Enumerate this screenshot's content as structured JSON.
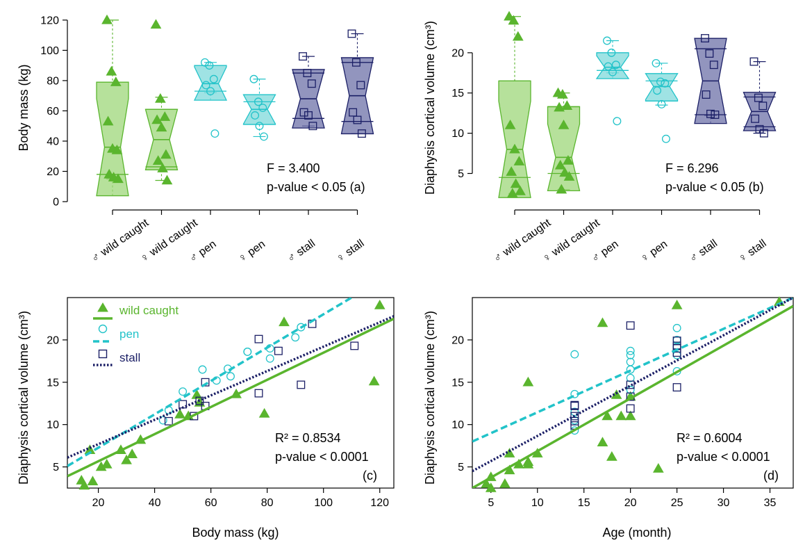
{
  "colors": {
    "wild": "#5ab52e",
    "wild_fill": "#9ed77a",
    "pen": "#22c3c9",
    "pen_fill": "#7fdadb",
    "stall": "#1b1f66",
    "stall_fill": "#6e72a8"
  },
  "panels": {
    "a": {
      "ylabel": "Body mass (kg)",
      "yticks": [
        "0",
        "20",
        "40",
        "60",
        "80",
        "100",
        "120"
      ],
      "categories": [
        "♂ wild caught",
        "♀ wild caught",
        "♂ pen",
        "♀ pen",
        "♂ stall",
        "♀ stall"
      ],
      "stat1": "F = 3.400",
      "stat2": "p-value < 0.05 (a)"
    },
    "b": {
      "ylabel": "Diaphysis cortical volume (cm³)",
      "yticks": [
        "5",
        "10",
        "15",
        "20"
      ],
      "categories": [
        "♂ wild caught",
        "♀ wild caught",
        "♂ pen",
        "♀ pen",
        "♂ stall",
        "♀ stall"
      ],
      "stat1": "F = 6.296",
      "stat2": "p-value < 0.05 (b)"
    },
    "c": {
      "xlabel": "Body mass (kg)",
      "ylabel": "Diaphysis cortical volume (cm³)",
      "xticks": [
        "20",
        "40",
        "60",
        "80",
        "100",
        "120"
      ],
      "yticks": [
        "5",
        "10",
        "15",
        "20"
      ],
      "stat1": "R² = 0.8534",
      "stat2": "p-value < 0.0001",
      "tag": "(c)",
      "legend": [
        "wild caught",
        "pen",
        "stall"
      ]
    },
    "d": {
      "xlabel": "Age (month)",
      "ylabel": "Diaphysis cortical volume (cm³)",
      "xticks": [
        "5",
        "10",
        "15",
        "20",
        "25",
        "30",
        "35"
      ],
      "yticks": [
        "5",
        "10",
        "15",
        "20"
      ],
      "stat1": "R² = 0.6004",
      "stat2": "p-value < 0.0001",
      "tag": "(d)"
    }
  },
  "chart_data": [
    {
      "type": "box",
      "panel": "a",
      "ylabel": "Body mass (kg)",
      "ylim": [
        0,
        125
      ],
      "categories": [
        "♂ wild caught",
        "♀ wild caught",
        "♂ pen",
        "♀ pen",
        "♂ stall",
        "♀ stall"
      ],
      "groups": [
        {
          "name": "♂ wild caught",
          "color": "wild",
          "min": 15,
          "q1": 18,
          "median": 36,
          "q3": 79,
          "max": 120,
          "points": [
            120,
            86,
            79,
            53,
            35,
            34,
            18,
            16,
            15
          ]
        },
        {
          "name": "♀ wild caught",
          "color": "wild",
          "min": 14,
          "q1": 23,
          "median": 41,
          "q3": 61,
          "max": 69,
          "points": [
            117,
            68,
            56,
            54,
            49,
            31,
            27,
            22,
            14
          ]
        },
        {
          "name": "♂ pen",
          "color": "pen",
          "min": 72,
          "q1": 73,
          "median": 78,
          "q3": 90,
          "max": 92,
          "points": [
            92,
            90,
            81,
            77,
            73,
            45
          ]
        },
        {
          "name": "♀ pen",
          "color": "pen",
          "min": 43,
          "q1": 51,
          "median": 61,
          "q3": 66,
          "max": 81,
          "points": [
            81,
            66,
            62,
            57,
            50,
            43
          ]
        },
        {
          "name": "♂ stall",
          "color": "stall",
          "min": 50,
          "q1": 55,
          "median": 68,
          "q3": 85,
          "max": 96,
          "points": [
            96,
            85,
            78,
            59,
            57,
            50
          ]
        },
        {
          "name": "♀ stall",
          "color": "stall",
          "min": 45,
          "q1": 53,
          "median": 70,
          "q3": 92,
          "max": 111,
          "points": [
            111,
            92,
            77,
            59,
            54,
            45
          ]
        }
      ]
    },
    {
      "type": "box",
      "panel": "b",
      "ylabel": "Diaphysis cortical volume (cm³)",
      "ylim": [
        1.5,
        25
      ],
      "categories": [
        "♂ wild caught",
        "♀ wild caught",
        "♂ pen",
        "♀ pen",
        "♂ stall",
        "♀ stall"
      ],
      "groups": [
        {
          "name": "♂ wild caught",
          "color": "wild",
          "min": 2.5,
          "q1": 4.5,
          "median": 8,
          "q3": 16.5,
          "max": 24.5,
          "points": [
            24.5,
            24.0,
            22,
            11,
            8,
            6.5,
            5.2,
            3.7,
            2.8,
            2.5
          ]
        },
        {
          "name": "♀ wild caught",
          "color": "wild",
          "min": 3,
          "q1": 5,
          "median": 7,
          "q3": 13.3,
          "max": 15,
          "points": [
            15,
            14.8,
            13.4,
            13.2,
            11,
            6.6,
            6,
            5.1,
            4.6,
            3
          ]
        },
        {
          "name": "♂ pen",
          "color": "pen",
          "min": 17.5,
          "q1": 17.8,
          "median": 18.2,
          "q3": 20,
          "max": 21.5,
          "points": [
            21.5,
            20,
            18.5,
            18.3,
            17.6,
            11.5
          ]
        },
        {
          "name": "♀ pen",
          "color": "pen",
          "min": 13.5,
          "q1": 14,
          "median": 15.8,
          "q3": 16.5,
          "max": 18.7,
          "points": [
            18.7,
            16.4,
            16.2,
            15.3,
            13.6,
            9.3
          ]
        },
        {
          "name": "♂ stall",
          "color": "stall",
          "min": 12.2,
          "q1": 12.3,
          "median": 16.5,
          "q3": 20.5,
          "max": 21.8,
          "points": [
            21.8,
            19.9,
            18.5,
            14.8,
            12.4,
            12.3
          ]
        },
        {
          "name": "♀ stall",
          "color": "stall",
          "min": 10,
          "q1": 10.8,
          "median": 12.7,
          "q3": 14.5,
          "max": 18.9,
          "points": [
            18.9,
            14.4,
            13.4,
            11.8,
            10.5,
            10
          ]
        }
      ]
    },
    {
      "type": "scatter",
      "panel": "c",
      "xlabel": "Body mass (kg)",
      "ylabel": "Diaphysis cortical volume (cm³)",
      "xlim": [
        9,
        125
      ],
      "ylim": [
        2.5,
        25
      ],
      "series": [
        {
          "name": "wild caught",
          "color": "wild",
          "marker": "triangle",
          "fit": [
            [
              9,
              3.9
            ],
            [
              125,
              22.5
            ]
          ],
          "fit_style": "solid",
          "points": [
            [
              14,
              3.4
            ],
            [
              15,
              2.8
            ],
            [
              18,
              3.3
            ],
            [
              17,
              7.0
            ],
            [
              21,
              5.0
            ],
            [
              23,
              5.3
            ],
            [
              28,
              7.0
            ],
            [
              30,
              5.8
            ],
            [
              32,
              6.5
            ],
            [
              35,
              8.2
            ],
            [
              49,
              11.2
            ],
            [
              52,
              11.0
            ],
            [
              55,
              13.5
            ],
            [
              56,
              12.6
            ],
            [
              69,
              13.6
            ],
            [
              79,
              11.3
            ],
            [
              86,
              22.1
            ],
            [
              118,
              15.1
            ],
            [
              120,
              24.1
            ]
          ]
        },
        {
          "name": "pen",
          "color": "pen",
          "marker": "circle",
          "fit": [
            [
              9,
              5.1
            ],
            [
              110,
              25
            ]
          ],
          "fit_style": "dashed",
          "points": [
            [
              43,
              10.5
            ],
            [
              45,
              11.7
            ],
            [
              50,
              13.9
            ],
            [
              57,
              16.5
            ],
            [
              62,
              15.2
            ],
            [
              66,
              16.6
            ],
            [
              67,
              15.7
            ],
            [
              73,
              18.6
            ],
            [
              73,
              18.6
            ],
            [
              81,
              17.8
            ],
            [
              81,
              19.0
            ],
            [
              90,
              20.3
            ],
            [
              92,
              21.5
            ]
          ]
        },
        {
          "name": "stall",
          "color": "stall",
          "marker": "square",
          "fit": [
            [
              9,
              6.1
            ],
            [
              125,
              22.8
            ]
          ],
          "fit_style": "dotted",
          "points": [
            [
              45,
              10.4
            ],
            [
              50,
              12.4
            ],
            [
              54,
              11.0
            ],
            [
              56,
              12.8
            ],
            [
              58,
              12.2
            ],
            [
              58,
              15.0
            ],
            [
              77,
              13.7
            ],
            [
              77,
              20.1
            ],
            [
              84,
              18.7
            ],
            [
              92,
              14.7
            ],
            [
              96,
              21.9
            ],
            [
              111,
              19.3
            ]
          ]
        }
      ]
    },
    {
      "type": "scatter",
      "panel": "d",
      "xlabel": "Age (month)",
      "ylabel": "Diaphysis cortical volume (cm³)",
      "xlim": [
        3,
        37.5
      ],
      "ylim": [
        2.5,
        25
      ],
      "series": [
        {
          "name": "wild caught",
          "color": "wild",
          "marker": "triangle",
          "fit": [
            [
              3,
              2.5
            ],
            [
              37.5,
              24.0
            ]
          ],
          "fit_style": "solid",
          "points": [
            [
              4.5,
              3.0
            ],
            [
              5,
              2.5
            ],
            [
              5,
              3.8
            ],
            [
              6.5,
              3.0
            ],
            [
              7,
              4.6
            ],
            [
              7,
              6.6
            ],
            [
              8,
              5.3
            ],
            [
              9,
              5.6
            ],
            [
              9,
              5.3
            ],
            [
              9,
              15.0
            ],
            [
              10,
              6.6
            ],
            [
              17,
              7.9
            ],
            [
              17,
              22.0
            ],
            [
              17.5,
              11.0
            ],
            [
              18,
              6.2
            ],
            [
              18.5,
              13.5
            ],
            [
              19,
              11.0
            ],
            [
              20,
              11.0
            ],
            [
              20,
              13.3
            ],
            [
              23,
              4.8
            ],
            [
              25,
              24.1
            ],
            [
              36,
              24.5
            ]
          ]
        },
        {
          "name": "pen",
          "color": "pen",
          "marker": "circle",
          "fit": [
            [
              3,
              8.0
            ],
            [
              37.5,
              25
            ]
          ],
          "fit_style": "dashed",
          "points": [
            [
              14,
              9.3
            ],
            [
              14,
              10.5
            ],
            [
              14,
              11.5
            ],
            [
              14,
              13.6
            ],
            [
              14,
              18.3
            ],
            [
              20,
              14.1
            ],
            [
              20,
              15.5
            ],
            [
              20,
              16.5
            ],
            [
              20,
              17.4
            ],
            [
              20,
              18.2
            ],
            [
              20,
              18.7
            ],
            [
              25,
              16.3
            ],
            [
              25,
              18.2
            ],
            [
              25,
              19.2
            ],
            [
              25,
              20.0
            ],
            [
              25,
              21.4
            ]
          ]
        },
        {
          "name": "stall",
          "color": "stall",
          "marker": "square",
          "fit": [
            [
              3,
              4.5
            ],
            [
              37.5,
              25
            ]
          ],
          "fit_style": "dotted",
          "points": [
            [
              14,
              9.9
            ],
            [
              14,
              10.4
            ],
            [
              14,
              11.0
            ],
            [
              14,
              12.2
            ],
            [
              14,
              12.3
            ],
            [
              20,
              11.9
            ],
            [
              20,
              13.3
            ],
            [
              20,
              14.7
            ],
            [
              20,
              21.7
            ],
            [
              25,
              14.4
            ],
            [
              25,
              18.5
            ],
            [
              25,
              19.0
            ],
            [
              25,
              19.3
            ],
            [
              25,
              19.9
            ]
          ]
        }
      ]
    }
  ]
}
